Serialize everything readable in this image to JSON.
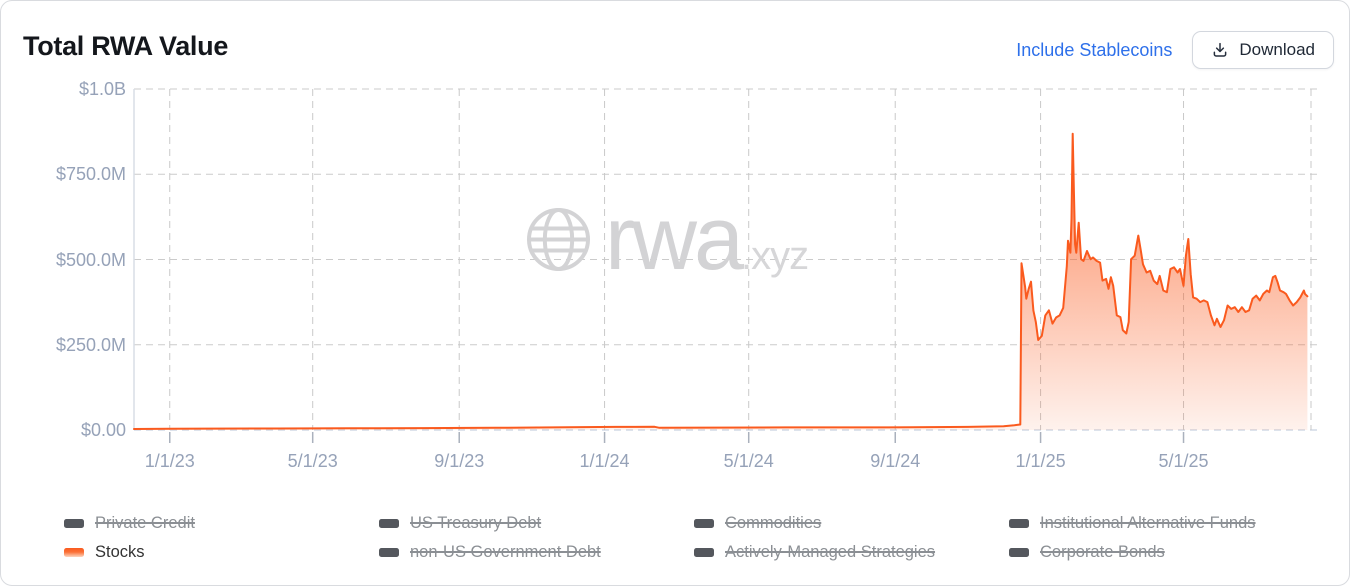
{
  "header": {
    "title": "Total RWA Value",
    "include_stablecoins_label": "Include Stablecoins",
    "download_label": "Download"
  },
  "watermark": {
    "brand": "rwa",
    "suffix": ".xyz"
  },
  "colors": {
    "accent_orange": "#fa5a1e",
    "link_blue": "#2e70ea",
    "axis_label": "#96a2b8",
    "grid": "#cbcbcb",
    "inactive_legend_swatch": "#54575d"
  },
  "legend": {
    "items": [
      {
        "id": "private-credit",
        "label": "Private Credit",
        "active": false
      },
      {
        "id": "us-treasury-debt",
        "label": "US Treasury Debt",
        "active": false
      },
      {
        "id": "commodities",
        "label": "Commodities",
        "active": false
      },
      {
        "id": "institutional-alternative-funds",
        "label": "Institutional Alternative Funds",
        "active": false
      },
      {
        "id": "stocks",
        "label": "Stocks",
        "active": true
      },
      {
        "id": "non-us-government-debt",
        "label": "non-US Government Debt",
        "active": false
      },
      {
        "id": "actively-managed-strategies",
        "label": "Actively-Managed Strategies",
        "active": false
      },
      {
        "id": "corporate-bonds",
        "label": "Corporate Bonds",
        "active": false
      }
    ]
  },
  "chart_data": {
    "type": "area",
    "title": "Total RWA Value",
    "value_unit": "USD millions",
    "ylim": [
      0,
      1000
    ],
    "x_range": [
      "2022-12-02",
      "2025-08-16"
    ],
    "grid": "dashed",
    "legend_position": "bottom",
    "y_ticks": [
      {
        "label": "$1.0B",
        "value": 1000
      },
      {
        "label": "$750.0M",
        "value": 750
      },
      {
        "label": "$500.0M",
        "value": 500
      },
      {
        "label": "$250.0M",
        "value": 250
      },
      {
        "label": "$0.00",
        "value": 0
      }
    ],
    "x_ticks": [
      {
        "label": "1/1/23",
        "date": "2023-01-01"
      },
      {
        "label": "5/1/23",
        "date": "2023-05-01"
      },
      {
        "label": "9/1/23",
        "date": "2023-09-01"
      },
      {
        "label": "1/1/24",
        "date": "2024-01-01"
      },
      {
        "label": "5/1/24",
        "date": "2024-05-01"
      },
      {
        "label": "9/1/24",
        "date": "2024-09-01"
      },
      {
        "label": "1/1/25",
        "date": "2025-01-01"
      },
      {
        "label": "5/1/25",
        "date": "2025-05-01"
      }
    ],
    "series": [
      {
        "name": "Stocks",
        "color": "#fa5a1e",
        "points": [
          [
            "2022-12-02",
            3
          ],
          [
            "2023-01-01",
            3.5
          ],
          [
            "2023-02-01",
            4
          ],
          [
            "2023-04-01",
            4.5
          ],
          [
            "2023-06-01",
            5
          ],
          [
            "2023-08-01",
            5.5
          ],
          [
            "2023-10-01",
            6.5
          ],
          [
            "2023-12-01",
            8
          ],
          [
            "2024-01-10",
            9
          ],
          [
            "2024-02-12",
            9.5
          ],
          [
            "2024-02-16",
            6.5
          ],
          [
            "2024-04-01",
            7
          ],
          [
            "2024-06-01",
            7.5
          ],
          [
            "2024-08-01",
            7.5
          ],
          [
            "2024-09-15",
            8
          ],
          [
            "2024-11-01",
            9
          ],
          [
            "2024-12-01",
            11
          ],
          [
            "2024-12-10",
            14
          ],
          [
            "2024-12-15",
            16
          ],
          [
            "2024-12-16",
            489
          ],
          [
            "2024-12-19",
            420
          ],
          [
            "2024-12-20",
            385
          ],
          [
            "2024-12-22",
            414
          ],
          [
            "2024-12-24",
            435
          ],
          [
            "2024-12-26",
            350
          ],
          [
            "2024-12-28",
            317
          ],
          [
            "2024-12-30",
            264
          ],
          [
            "2025-01-02",
            276
          ],
          [
            "2025-01-05",
            336
          ],
          [
            "2025-01-08",
            351
          ],
          [
            "2025-01-11",
            312
          ],
          [
            "2025-01-14",
            330
          ],
          [
            "2025-01-17",
            336
          ],
          [
            "2025-01-20",
            358
          ],
          [
            "2025-01-23",
            480
          ],
          [
            "2025-01-24",
            555
          ],
          [
            "2025-01-26",
            520
          ],
          [
            "2025-01-27",
            620
          ],
          [
            "2025-01-28",
            869
          ],
          [
            "2025-01-29",
            700
          ],
          [
            "2025-01-30",
            545
          ],
          [
            "2025-01-31",
            520
          ],
          [
            "2025-02-02",
            608
          ],
          [
            "2025-02-04",
            501
          ],
          [
            "2025-02-06",
            496
          ],
          [
            "2025-02-09",
            525
          ],
          [
            "2025-02-12",
            501
          ],
          [
            "2025-02-14",
            506
          ],
          [
            "2025-02-17",
            496
          ],
          [
            "2025-02-20",
            491
          ],
          [
            "2025-02-22",
            438
          ],
          [
            "2025-02-25",
            443
          ],
          [
            "2025-02-27",
            414
          ],
          [
            "2025-03-01",
            448
          ],
          [
            "2025-03-03",
            423
          ],
          [
            "2025-03-06",
            336
          ],
          [
            "2025-03-09",
            331
          ],
          [
            "2025-03-11",
            293
          ],
          [
            "2025-03-14",
            283
          ],
          [
            "2025-03-16",
            317
          ],
          [
            "2025-03-18",
            501
          ],
          [
            "2025-03-21",
            511
          ],
          [
            "2025-03-24",
            570
          ],
          [
            "2025-03-26",
            530
          ],
          [
            "2025-03-28",
            486
          ],
          [
            "2025-03-31",
            462
          ],
          [
            "2025-04-03",
            467
          ],
          [
            "2025-04-06",
            438
          ],
          [
            "2025-04-09",
            428
          ],
          [
            "2025-04-11",
            452
          ],
          [
            "2025-04-14",
            409
          ],
          [
            "2025-04-17",
            404
          ],
          [
            "2025-04-20",
            472
          ],
          [
            "2025-04-23",
            477
          ],
          [
            "2025-04-26",
            462
          ],
          [
            "2025-04-28",
            472
          ],
          [
            "2025-05-01",
            423
          ],
          [
            "2025-05-03",
            511
          ],
          [
            "2025-05-05",
            560
          ],
          [
            "2025-05-07",
            457
          ],
          [
            "2025-05-09",
            389
          ],
          [
            "2025-05-12",
            385
          ],
          [
            "2025-05-15",
            375
          ],
          [
            "2025-05-18",
            380
          ],
          [
            "2025-05-21",
            375
          ],
          [
            "2025-05-24",
            336
          ],
          [
            "2025-05-27",
            307
          ],
          [
            "2025-05-29",
            326
          ],
          [
            "2025-06-01",
            302
          ],
          [
            "2025-06-04",
            322
          ],
          [
            "2025-06-07",
            365
          ],
          [
            "2025-06-10",
            355
          ],
          [
            "2025-06-13",
            360
          ],
          [
            "2025-06-16",
            346
          ],
          [
            "2025-06-19",
            360
          ],
          [
            "2025-06-22",
            346
          ],
          [
            "2025-06-25",
            351
          ],
          [
            "2025-06-28",
            385
          ],
          [
            "2025-07-01",
            394
          ],
          [
            "2025-07-04",
            380
          ],
          [
            "2025-07-07",
            399
          ],
          [
            "2025-07-10",
            409
          ],
          [
            "2025-07-12",
            404
          ],
          [
            "2025-07-15",
            448
          ],
          [
            "2025-07-17",
            452
          ],
          [
            "2025-07-19",
            433
          ],
          [
            "2025-07-21",
            409
          ],
          [
            "2025-07-24",
            404
          ],
          [
            "2025-07-26",
            399
          ],
          [
            "2025-07-29",
            380
          ],
          [
            "2025-08-01",
            365
          ],
          [
            "2025-08-04",
            375
          ],
          [
            "2025-08-07",
            389
          ],
          [
            "2025-08-10",
            409
          ],
          [
            "2025-08-11",
            399
          ],
          [
            "2025-08-13",
            392
          ]
        ]
      }
    ]
  }
}
